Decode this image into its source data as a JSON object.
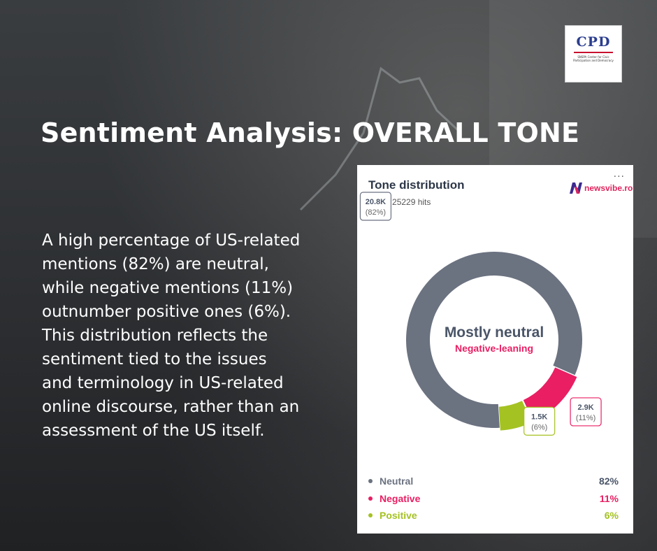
{
  "logo": {
    "title": "CPD",
    "subtitle": "SNSPA Center for Civic Participation and Democracy"
  },
  "headline": "Sentiment Analysis: OVERALL TONE",
  "body_lines": [
    "A high percentage of US-related",
    "mentions (82%) are neutral,",
    "while negative mentions (11%)",
    "outnumber positive ones (6%).",
    "This distribution reflects the",
    "sentiment tied to the issues",
    "and terminology in US-related",
    "online discourse, rather than an",
    "assessment of the US itself."
  ],
  "card": {
    "title": "Tone distribution",
    "subtitle": "within 25229 hits",
    "brand": "newsvibe.ro",
    "more_icon": "more-dots-icon"
  },
  "colors": {
    "neutral": "#6b7280",
    "negative": "#e91e63",
    "positive": "#a4c221",
    "center_title": "#4a5568",
    "brand": "#e0245e"
  },
  "chart_data": {
    "type": "pie",
    "variant": "donut",
    "title": "Tone distribution",
    "subtitle": "within 25229 hits",
    "center_label": "Mostly neutral",
    "center_sublabel": "Negative-leaning",
    "slices": [
      {
        "name": "Neutral",
        "value": 20.8,
        "count_label": "20.8K",
        "percent": 82,
        "percent_label": "(82%)",
        "legend_value": "82%",
        "color": "#6b7280"
      },
      {
        "name": "Negative",
        "value": 2.9,
        "count_label": "2.9K",
        "percent": 11,
        "percent_label": "(11%)",
        "legend_value": "11%",
        "color": "#e91e63"
      },
      {
        "name": "Positive",
        "value": 1.5,
        "count_label": "1.5K",
        "percent": 6,
        "percent_label": "(6%)",
        "legend_value": "6%",
        "color": "#a4c221"
      }
    ],
    "legend_position": "bottom"
  }
}
